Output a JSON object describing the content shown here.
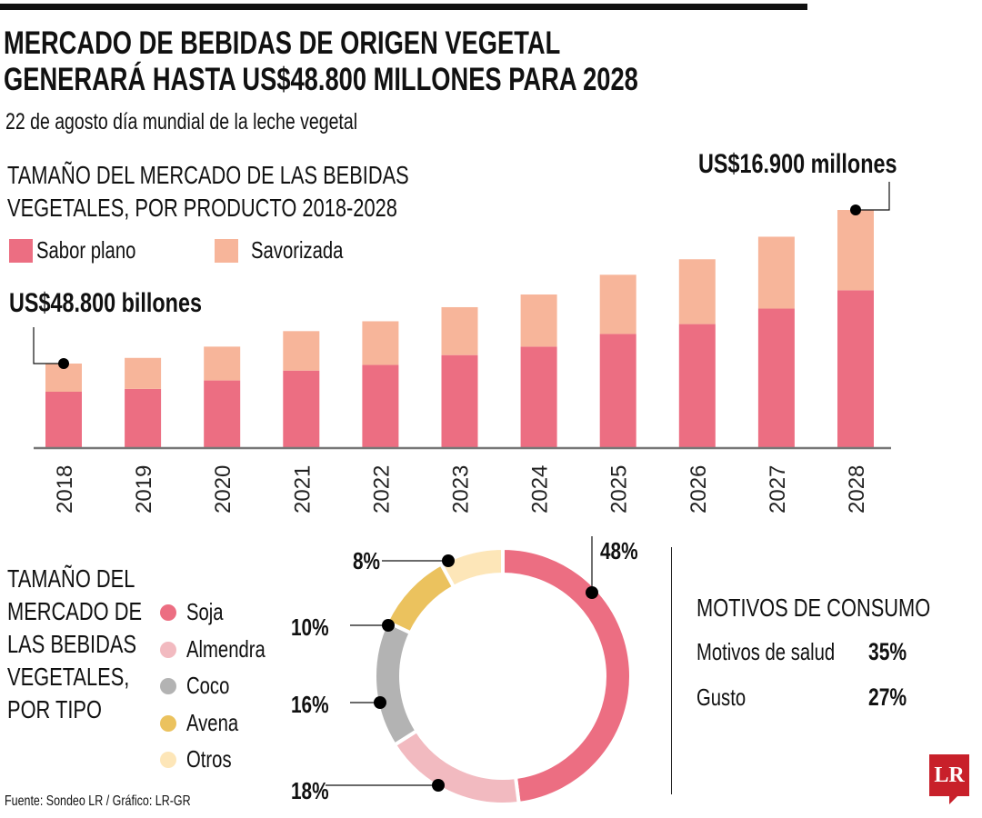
{
  "title_lines": [
    "MERCADO DE BEBIDAS DE ORIGEN VEGETAL",
    "GENERARÁ HASTA US$48.800 MILLONES PARA 2028"
  ],
  "subtitle": "22 de agosto día mundial de la leche vegetal",
  "source": "Fuente: Sondeo LR / Gráfico: LR-GR",
  "logo": "LR",
  "colors": {
    "sabor_plano": "#EC6E82",
    "savorizada": "#F7B59A",
    "soja": "#EC6E82",
    "almendra": "#F2BAC0",
    "coco": "#B3B3B3",
    "avena": "#EBC25E",
    "otros": "#FDE6B8"
  },
  "chart_data": [
    {
      "type": "bar",
      "stacked": true,
      "title_lines": [
        "TAMAÑO DEL MERCADO  DE LAS BEBIDAS",
        "VEGETALES, POR PRODUCTO 2018-2028"
      ],
      "categories": [
        "2018",
        "2019",
        "2020",
        "2021",
        "2022",
        "2023",
        "2024",
        "2025",
        "2026",
        "2027",
        "2028"
      ],
      "series": [
        {
          "name": "Sabor plano",
          "values": [
            4.0,
            4.2,
            4.8,
            5.5,
            5.9,
            6.6,
            7.2,
            8.1,
            8.8,
            9.9,
            11.2
          ]
        },
        {
          "name": "Savorizada",
          "values": [
            2.0,
            2.2,
            2.4,
            2.8,
            3.1,
            3.4,
            3.7,
            4.2,
            4.6,
            5.1,
            5.7
          ]
        }
      ],
      "legend_placement": "top-left",
      "grid": false,
      "ylim": [
        0,
        17
      ],
      "annotations": [
        {
          "category": "2018",
          "text": "US$48.800 billones"
        },
        {
          "category": "2028",
          "text": "US$16.900 millones"
        }
      ]
    },
    {
      "type": "pie",
      "donut": true,
      "title_lines": [
        "TAMAÑO DEL",
        "MERCADO DE",
        "LAS BEBIDAS",
        "VEGETALES,",
        "POR TIPO"
      ],
      "labels": [
        "Soja",
        "Almendra",
        "Coco",
        "Avena",
        "Otros"
      ],
      "values": [
        48,
        18,
        16,
        10,
        8
      ],
      "value_labels": [
        "48%",
        "18%",
        "16%",
        "10%",
        "8%"
      ],
      "legend_placement": "left"
    }
  ],
  "motivos": {
    "title": "MOTIVOS DE CONSUMO",
    "rows": [
      {
        "label": "Motivos de salud",
        "value": "35%"
      },
      {
        "label": "Gusto",
        "value": "27%"
      }
    ]
  }
}
